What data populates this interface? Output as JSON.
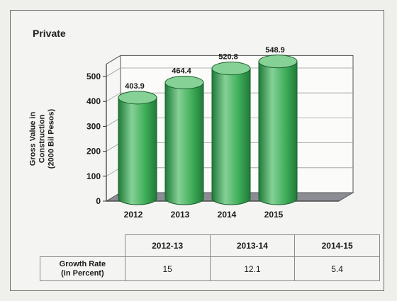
{
  "panel_title": "Private",
  "chart_data": {
    "type": "bar",
    "title": "Private",
    "categories": [
      "2012",
      "2013",
      "2014",
      "2015"
    ],
    "values": [
      403.9,
      464.4,
      520.8,
      548.9
    ],
    "value_labels": [
      "403.9",
      "464.4",
      "520.8",
      "548.9"
    ],
    "ylabel_lines": [
      "Gross Value in",
      "Construction",
      "(2000 Bil Pesos)"
    ],
    "ylim": [
      0,
      500
    ],
    "yticks": [
      "0",
      "100",
      "200",
      "300",
      "400",
      "500"
    ],
    "ytick_values": [
      0,
      100,
      200,
      300,
      400,
      500
    ],
    "bar_color": "#3fae5a",
    "bar_dark": "#1f7a38",
    "bar_light": "#86d196",
    "floor_color": "#8c8c94",
    "grid": true
  },
  "growth_table": {
    "headers": [
      "2012-13",
      "2013-14",
      "2014-15"
    ],
    "row_label_lines": [
      "Growth Rate",
      "(in Percent)"
    ],
    "values": [
      "15",
      "12.1",
      "5.4"
    ]
  }
}
